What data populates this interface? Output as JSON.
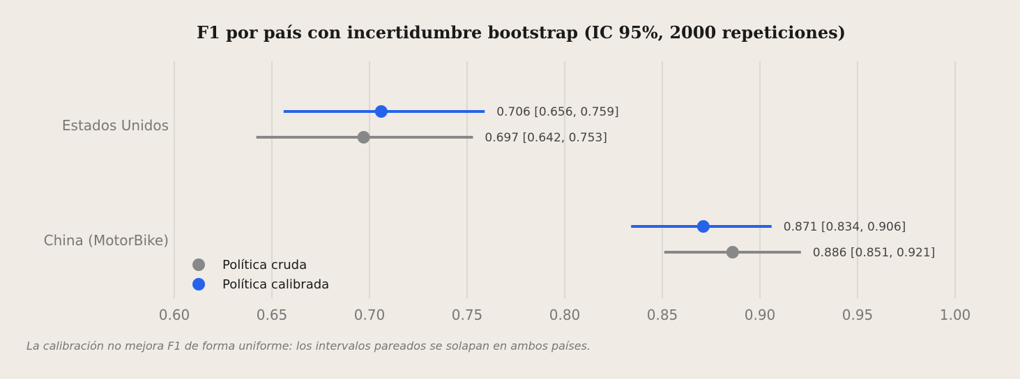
{
  "chart_data": {
    "type": "dot-errorbar",
    "title": "F1 por país con incertidumbre bootstrap (IC 95%, 2000 repeticiones)",
    "xlabel": "",
    "ylabel": "",
    "xlim": [
      0.6,
      1.0
    ],
    "xticks": [
      "0.60",
      "0.65",
      "0.70",
      "0.75",
      "0.80",
      "0.85",
      "0.90",
      "0.95",
      "1.00"
    ],
    "grid": "vertical",
    "legend_position": "lower-left",
    "categories": [
      "Estados Unidos",
      "China (MotorBike)"
    ],
    "series": [
      {
        "name": "Política cruda",
        "color": "#888888",
        "points": [
          {
            "category": "Estados Unidos",
            "value": 0.697,
            "lo": 0.642,
            "hi": 0.753,
            "label": "0.697  [0.642, 0.753]"
          },
          {
            "category": "China (MotorBike)",
            "value": 0.886,
            "lo": 0.851,
            "hi": 0.921,
            "label": "0.886  [0.851, 0.921]"
          }
        ]
      },
      {
        "name": "Política calibrada",
        "color": "#2563eb",
        "points": [
          {
            "category": "Estados Unidos",
            "value": 0.706,
            "lo": 0.656,
            "hi": 0.759,
            "label": "0.706  [0.656, 0.759]"
          },
          {
            "category": "China (MotorBike)",
            "value": 0.871,
            "lo": 0.834,
            "hi": 0.906,
            "label": "0.871  [0.834, 0.906]"
          }
        ]
      }
    ],
    "footnote": "La calibración no mejora F1 de forma uniforme: los intervalos pareados se solapan en ambos países."
  },
  "colors": {
    "background": "#f0ebe4",
    "grid": "#d6d2cc",
    "tick_text": "#777777",
    "category_text": "#777777",
    "label_text": "#444444",
    "legend_text": "#1a1a1a"
  }
}
